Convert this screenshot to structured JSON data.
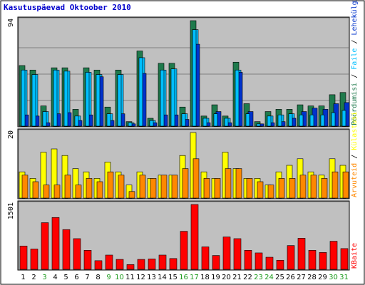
{
  "title": "Kasutuspäevad Oktoober 2010",
  "colors": {
    "background": "#ffffff",
    "plot_bg": "#c0c0c0",
    "frame": "#000000",
    "title": "#0000cc",
    "hits": "#1f7a4c",
    "files": "#00bfff",
    "pages": "#0033cc",
    "visits": "#ffff00",
    "sites": "#ff8800",
    "kbytes": "#ff0000",
    "weekend": "#1a9a1a",
    "weekday": "#000000"
  },
  "chart_data": [
    {
      "type": "bar",
      "panel": "top",
      "ymax_label": "94",
      "categories": [
        "1",
        "2",
        "3",
        "4",
        "5",
        "6",
        "7",
        "8",
        "9",
        "10",
        "11",
        "12",
        "13",
        "14",
        "15",
        "16",
        "17",
        "18",
        "19",
        "20",
        "21",
        "22",
        "23",
        "24",
        "25",
        "26",
        "27",
        "28",
        "29",
        "30",
        "31"
      ],
      "weekend_days": [
        "3",
        "9",
        "10",
        "16",
        "17",
        "23",
        "24",
        "30",
        "31"
      ],
      "series": [
        {
          "name": "Pöördumisi",
          "values": [
            54,
            50,
            18,
            52,
            52,
            15,
            52,
            50,
            17,
            50,
            4,
            67,
            7,
            56,
            56,
            17,
            94,
            9,
            19,
            9,
            57,
            20,
            4,
            13,
            15,
            15,
            19,
            18,
            18,
            28,
            30
          ],
          "color_key": "hits"
        },
        {
          "name": "Faile",
          "values": [
            50,
            46,
            13,
            50,
            49,
            9,
            48,
            46,
            11,
            46,
            3,
            61,
            5,
            50,
            51,
            11,
            86,
            7,
            11,
            7,
            50,
            11,
            2,
            9,
            10,
            11,
            10,
            10,
            10,
            12,
            14
          ],
          "color_key": "files"
        },
        {
          "name": "Lehekülgi",
          "values": [
            10,
            9,
            3,
            11,
            12,
            5,
            10,
            44,
            5,
            11,
            2,
            47,
            3,
            10,
            10,
            6,
            73,
            3,
            13,
            3,
            48,
            13,
            2,
            3,
            4,
            7,
            13,
            16,
            15,
            20,
            21
          ],
          "color_key": "pages"
        }
      ]
    },
    {
      "type": "bar",
      "panel": "middle",
      "ymax_label": "20",
      "categories": [
        "1",
        "2",
        "3",
        "4",
        "5",
        "6",
        "7",
        "8",
        "9",
        "10",
        "11",
        "12",
        "13",
        "14",
        "15",
        "16",
        "17",
        "18",
        "19",
        "20",
        "21",
        "22",
        "23",
        "24",
        "25",
        "26",
        "27",
        "28",
        "29",
        "30",
        "31"
      ],
      "series": [
        {
          "name": "Külastusi",
          "values": [
            8,
            6,
            14,
            15,
            13,
            9,
            8,
            6,
            11,
            8,
            4,
            8,
            6,
            7,
            7,
            13,
            20,
            8,
            6,
            14,
            9,
            6,
            6,
            4,
            8,
            10,
            12,
            8,
            7,
            12,
            10
          ],
          "color_key": "visits"
        },
        {
          "name": "Arvuteid",
          "values": [
            7,
            5,
            4,
            4,
            7,
            4,
            6,
            5,
            8,
            7,
            2,
            7,
            6,
            7,
            7,
            9,
            12,
            6,
            6,
            9,
            9,
            6,
            5,
            4,
            6,
            6,
            7,
            7,
            6,
            8,
            8
          ],
          "color_key": "sites"
        }
      ]
    },
    {
      "type": "bar",
      "panel": "bottom",
      "ymax_label": "1501",
      "categories": [
        "1",
        "2",
        "3",
        "4",
        "5",
        "6",
        "7",
        "8",
        "9",
        "10",
        "11",
        "12",
        "13",
        "14",
        "15",
        "16",
        "17",
        "18",
        "19",
        "20",
        "21",
        "22",
        "23",
        "24",
        "25",
        "26",
        "27",
        "28",
        "29",
        "30",
        "31"
      ],
      "series": [
        {
          "name": "KBaite",
          "values": [
            540,
            470,
            1080,
            1200,
            920,
            710,
            440,
            200,
            330,
            230,
            110,
            230,
            240,
            330,
            250,
            880,
            1501,
            520,
            320,
            750,
            710,
            440,
            380,
            280,
            210,
            550,
            720,
            440,
            390,
            650,
            480
          ],
          "color_key": "kbytes"
        }
      ]
    }
  ],
  "right_labels": {
    "top": [
      {
        "text": "Pöördumisi",
        "color_key": "hits"
      },
      {
        "text": "Faile",
        "color_key": "files"
      },
      {
        "text": "Lehekülgi",
        "color_key": "pages"
      }
    ],
    "middle": [
      {
        "text": "Arvuteid",
        "color_key": "sites"
      },
      {
        "text": "Külastusi",
        "color_key": "visits"
      }
    ],
    "bottom": [
      {
        "text": "KBaite",
        "color_key": "kbytes"
      }
    ]
  }
}
